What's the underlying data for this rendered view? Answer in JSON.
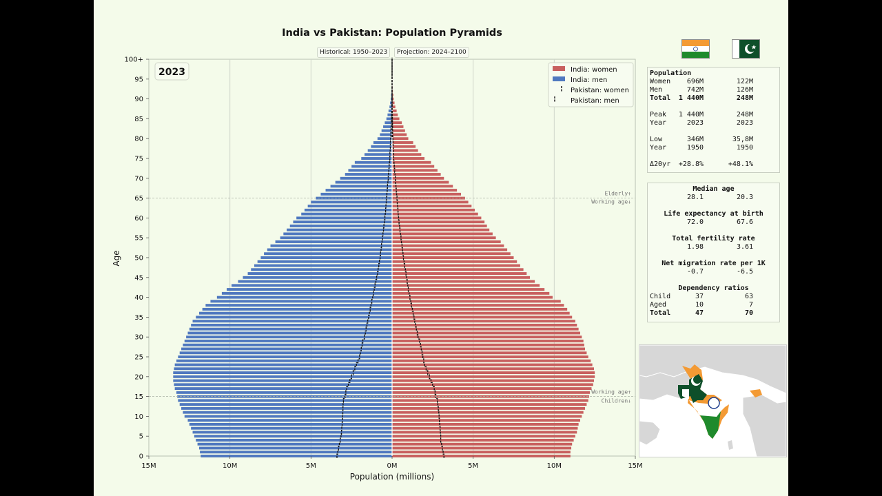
{
  "chart_data": {
    "type": "population-pyramid",
    "title": "India vs Pakistan: Population Pyramids",
    "year_label": "2023",
    "tags": {
      "historical": "Historical: 1950–2023",
      "projection": "Projection: 2024–2100"
    },
    "xlabel": "Population (millions)",
    "ylabel": "Age",
    "xlim": [
      -15,
      15
    ],
    "x_ticks": [
      "15M",
      "10M",
      "5M",
      "0M",
      "5M",
      "10M",
      "15M"
    ],
    "y_ticks": [
      "0",
      "5",
      "10",
      "15",
      "20",
      "25",
      "30",
      "35",
      "40",
      "45",
      "50",
      "55",
      "60",
      "65",
      "70",
      "75",
      "80",
      "85",
      "90",
      "95",
      "100+"
    ],
    "legend": [
      "India: women",
      "India: men",
      "Pakistan: women",
      "Pakistan: men"
    ],
    "colors": {
      "india_women": "#c8605f",
      "india_men": "#4f78bf",
      "pakistan": "#111111"
    },
    "annotations": {
      "elderly": "Elderly↑",
      "working_upper": "Working age↓",
      "working_lower": "Working age↑",
      "children": "Children↓"
    },
    "age_bins": [
      0,
      1,
      2,
      3,
      4,
      5,
      6,
      7,
      8,
      9,
      10,
      11,
      12,
      13,
      14,
      15,
      16,
      17,
      18,
      19,
      20,
      21,
      22,
      23,
      24,
      25,
      26,
      27,
      28,
      29,
      30,
      31,
      32,
      33,
      34,
      35,
      36,
      37,
      38,
      39,
      40,
      41,
      42,
      43,
      44,
      45,
      46,
      47,
      48,
      49,
      50,
      51,
      52,
      53,
      54,
      55,
      56,
      57,
      58,
      59,
      60,
      61,
      62,
      63,
      64,
      65,
      66,
      67,
      68,
      69,
      70,
      71,
      72,
      73,
      74,
      75,
      76,
      77,
      78,
      79,
      80,
      81,
      82,
      83,
      84,
      85,
      86,
      87,
      88,
      89,
      90,
      91,
      92,
      93,
      94,
      95,
      96,
      97,
      98,
      99,
      100
    ],
    "series": [
      {
        "name": "India: women",
        "side": "right",
        "values": [
          11.0,
          11.0,
          11.05,
          11.1,
          11.2,
          11.3,
          11.4,
          11.45,
          11.5,
          11.6,
          11.7,
          11.8,
          11.9,
          12.0,
          12.1,
          12.15,
          12.2,
          12.3,
          12.4,
          12.45,
          12.5,
          12.5,
          12.45,
          12.35,
          12.25,
          12.1,
          12.0,
          11.9,
          11.85,
          11.8,
          11.7,
          11.6,
          11.5,
          11.4,
          11.3,
          11.1,
          10.95,
          10.8,
          10.6,
          10.4,
          9.9,
          9.7,
          9.4,
          9.1,
          8.8,
          8.5,
          8.3,
          8.1,
          7.9,
          7.7,
          7.5,
          7.3,
          7.1,
          6.9,
          6.7,
          6.4,
          6.2,
          6.0,
          5.85,
          5.7,
          5.5,
          5.3,
          5.1,
          4.9,
          4.7,
          4.5,
          4.25,
          4.0,
          3.75,
          3.5,
          3.2,
          3.0,
          2.8,
          2.6,
          2.4,
          2.0,
          1.8,
          1.6,
          1.45,
          1.3,
          1.0,
          0.9,
          0.8,
          0.7,
          0.6,
          0.45,
          0.35,
          0.28,
          0.2,
          0.15,
          0.1,
          0.08,
          0.05,
          0.03,
          0.02,
          0.01,
          0,
          0,
          0,
          0,
          0
        ]
      },
      {
        "name": "India: men",
        "side": "left",
        "values": [
          11.8,
          11.85,
          11.9,
          12.0,
          12.1,
          12.2,
          12.3,
          12.4,
          12.5,
          12.6,
          12.8,
          12.9,
          13.0,
          13.1,
          13.2,
          13.25,
          13.3,
          13.4,
          13.45,
          13.5,
          13.5,
          13.5,
          13.45,
          13.4,
          13.3,
          13.2,
          13.1,
          13.0,
          12.9,
          12.8,
          12.7,
          12.6,
          12.5,
          12.4,
          12.3,
          12.1,
          11.9,
          11.7,
          11.5,
          11.2,
          10.8,
          10.5,
          10.2,
          9.9,
          9.5,
          9.2,
          8.9,
          8.7,
          8.5,
          8.3,
          8.1,
          7.9,
          7.7,
          7.5,
          7.2,
          6.9,
          6.7,
          6.5,
          6.3,
          6.1,
          5.9,
          5.6,
          5.4,
          5.2,
          5.0,
          4.7,
          4.4,
          4.1,
          3.8,
          3.5,
          3.2,
          2.9,
          2.7,
          2.5,
          2.3,
          1.9,
          1.7,
          1.5,
          1.3,
          1.15,
          0.9,
          0.75,
          0.65,
          0.55,
          0.45,
          0.35,
          0.28,
          0.22,
          0.16,
          0.12,
          0.08,
          0.06,
          0.04,
          0.02,
          0.01,
          0,
          0,
          0,
          0,
          0,
          0
        ]
      },
      {
        "name": "Pakistan: women",
        "side": "right",
        "values": [
          3.2,
          3.15,
          3.1,
          3.05,
          3.0,
          3.0,
          2.98,
          2.96,
          2.94,
          2.92,
          2.9,
          2.88,
          2.85,
          2.82,
          2.79,
          2.7,
          2.65,
          2.6,
          2.5,
          2.4,
          2.3,
          2.2,
          2.1,
          2.0,
          1.95,
          1.9,
          1.85,
          1.8,
          1.75,
          1.7,
          1.6,
          1.55,
          1.5,
          1.45,
          1.4,
          1.35,
          1.3,
          1.25,
          1.2,
          1.15,
          1.1,
          1.05,
          1.0,
          0.97,
          0.93,
          0.9,
          0.86,
          0.82,
          0.78,
          0.74,
          0.7,
          0.67,
          0.64,
          0.61,
          0.58,
          0.55,
          0.52,
          0.49,
          0.46,
          0.43,
          0.4,
          0.38,
          0.36,
          0.34,
          0.32,
          0.3,
          0.28,
          0.26,
          0.24,
          0.22,
          0.2,
          0.18,
          0.16,
          0.14,
          0.12,
          0.1,
          0.09,
          0.08,
          0.07,
          0.06,
          0.05,
          0.04,
          0.035,
          0.03,
          0.025,
          0.02,
          0.015,
          0.01,
          0.008,
          0.006,
          0.004,
          0,
          0,
          0,
          0,
          0,
          0,
          0,
          0,
          0,
          0
        ]
      },
      {
        "name": "Pakistan: men",
        "side": "left",
        "values": [
          3.4,
          3.35,
          3.3,
          3.25,
          3.2,
          3.15,
          3.12,
          3.1,
          3.08,
          3.06,
          3.05,
          3.04,
          3.03,
          3.02,
          3.0,
          2.9,
          2.85,
          2.8,
          2.7,
          2.6,
          2.5,
          2.4,
          2.3,
          2.2,
          2.1,
          2.0,
          1.95,
          1.9,
          1.85,
          1.8,
          1.7,
          1.65,
          1.6,
          1.55,
          1.5,
          1.45,
          1.4,
          1.35,
          1.3,
          1.25,
          1.2,
          1.15,
          1.1,
          1.05,
          1.0,
          0.95,
          0.9,
          0.86,
          0.82,
          0.78,
          0.74,
          0.71,
          0.68,
          0.65,
          0.62,
          0.59,
          0.56,
          0.53,
          0.5,
          0.47,
          0.44,
          0.42,
          0.4,
          0.38,
          0.36,
          0.34,
          0.32,
          0.3,
          0.28,
          0.26,
          0.24,
          0.22,
          0.2,
          0.18,
          0.16,
          0.14,
          0.13,
          0.12,
          0.11,
          0.1,
          0.09,
          0.08,
          0.07,
          0.06,
          0.05,
          0.04,
          0.03,
          0.02,
          0.015,
          0.01,
          0.005,
          0,
          0,
          0,
          0,
          0,
          0,
          0,
          0,
          0,
          0
        ]
      }
    ],
    "grid": true,
    "legend_position": "top-right"
  },
  "stats": {
    "population_header": "Population",
    "population_rows": [
      {
        "label": "Women",
        "india": "696M",
        "pakistan": "122M",
        "bold": false
      },
      {
        "label": "Men",
        "india": "742M",
        "pakistan": "126M",
        "bold": false
      },
      {
        "label": "Total",
        "india": "1 440M",
        "pakistan": "248M",
        "bold": true
      },
      {
        "label": "Peak",
        "india": "1 440M",
        "pakistan": "248M",
        "bold": false
      },
      {
        "label": "Year",
        "india": "2023",
        "pakistan": "2023",
        "bold": false
      },
      {
        "label": "Low",
        "india": "346M",
        "pakistan": "35,8M",
        "bold": false
      },
      {
        "label": "Year",
        "india": "1950",
        "pakistan": "1950",
        "bold": false
      },
      {
        "label": "Δ20yr",
        "india": "+28.8%",
        "pakistan": "+48.1%",
        "bold": false
      }
    ],
    "median_age": {
      "label": "Median age",
      "india": "28.1",
      "pakistan": "20.3"
    },
    "life_expectancy": {
      "label": "Life expectancy at birth",
      "india": "72.0",
      "pakistan": "67.6"
    },
    "fertility": {
      "label": "Total fertility rate",
      "india": "1.98",
      "pakistan": "3.61"
    },
    "migration": {
      "label": "Net migration rate per 1K",
      "india": "-0.7",
      "pakistan": "-6.5"
    },
    "dependency": {
      "label": "Dependency ratios",
      "rows": [
        {
          "label": "Child",
          "india": "37",
          "pakistan": "63",
          "bold": false
        },
        {
          "label": "Aged",
          "india": "10",
          "pakistan": "7",
          "bold": false
        },
        {
          "label": "Total",
          "india": "47",
          "pakistan": "70",
          "bold": true
        }
      ]
    }
  },
  "flags": {
    "india": "india-flag",
    "pakistan": "pakistan-flag"
  }
}
